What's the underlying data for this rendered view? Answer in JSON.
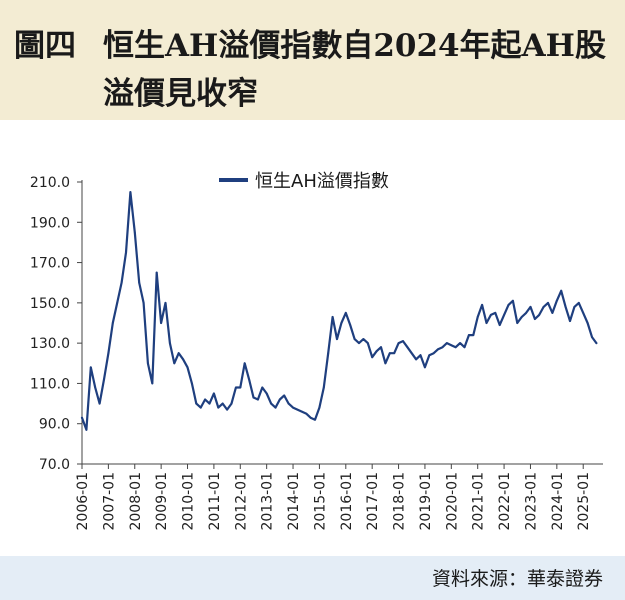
{
  "header": {
    "figure_label": "圖四",
    "title_line1": "恒生AH溢價指數自2024年起AH股",
    "title_line2": "溢價見收窄"
  },
  "footer": {
    "source": "資料來源：華泰證券"
  },
  "colors": {
    "header_bg": "#f3ecd3",
    "footer_bg": "#e4edf6",
    "series": "#1f3f7f"
  },
  "chart_data": {
    "type": "line",
    "title": "恒生AH溢價指數自2024年起AH股溢價見收窄",
    "xlabel": "",
    "ylabel": "",
    "ylim": [
      70,
      210
    ],
    "yticks": [
      "70.0",
      "90.0",
      "110.0",
      "130.0",
      "150.0",
      "170.0",
      "190.0",
      "210.0"
    ],
    "xticks": [
      "2006-01",
      "2007-01",
      "2008-01",
      "2009-01",
      "2010-01",
      "2011-01",
      "2012-01",
      "2013-01",
      "2014-01",
      "2015-01",
      "2016-01",
      "2017-01",
      "2018-01",
      "2019-01",
      "2020-01",
      "2021-01",
      "2022-01",
      "2023-01",
      "2024-01",
      "2025-01"
    ],
    "grid": false,
    "legend": "top-center",
    "series": [
      {
        "name": "恒生AH溢價指數",
        "x": [
          "2006-01",
          "2006-03",
          "2006-05",
          "2006-07",
          "2006-09",
          "2006-11",
          "2007-01",
          "2007-03",
          "2007-05",
          "2007-07",
          "2007-09",
          "2007-11",
          "2008-01",
          "2008-03",
          "2008-05",
          "2008-07",
          "2008-09",
          "2008-11",
          "2009-01",
          "2009-03",
          "2009-05",
          "2009-07",
          "2009-09",
          "2009-11",
          "2010-01",
          "2010-03",
          "2010-05",
          "2010-07",
          "2010-09",
          "2010-11",
          "2011-01",
          "2011-03",
          "2011-05",
          "2011-07",
          "2011-09",
          "2011-11",
          "2012-01",
          "2012-03",
          "2012-05",
          "2012-07",
          "2012-09",
          "2012-11",
          "2013-01",
          "2013-03",
          "2013-05",
          "2013-07",
          "2013-09",
          "2013-11",
          "2014-01",
          "2014-03",
          "2014-05",
          "2014-07",
          "2014-09",
          "2014-11",
          "2015-01",
          "2015-03",
          "2015-05",
          "2015-07",
          "2015-09",
          "2015-11",
          "2016-01",
          "2016-03",
          "2016-05",
          "2016-07",
          "2016-09",
          "2016-11",
          "2017-01",
          "2017-03",
          "2017-05",
          "2017-07",
          "2017-09",
          "2017-11",
          "2018-01",
          "2018-03",
          "2018-05",
          "2018-07",
          "2018-09",
          "2018-11",
          "2019-01",
          "2019-03",
          "2019-05",
          "2019-07",
          "2019-09",
          "2019-11",
          "2020-01",
          "2020-03",
          "2020-05",
          "2020-07",
          "2020-09",
          "2020-11",
          "2021-01",
          "2021-03",
          "2021-05",
          "2021-07",
          "2021-09",
          "2021-11",
          "2022-01",
          "2022-03",
          "2022-05",
          "2022-07",
          "2022-09",
          "2022-11",
          "2023-01",
          "2023-03",
          "2023-05",
          "2023-07",
          "2023-09",
          "2023-11",
          "2024-01",
          "2024-03",
          "2024-05",
          "2024-07",
          "2024-09",
          "2024-11",
          "2025-01",
          "2025-03",
          "2025-05",
          "2025-07"
        ],
        "values": [
          93,
          87,
          118,
          108,
          100,
          112,
          125,
          140,
          150,
          160,
          175,
          205,
          185,
          160,
          150,
          120,
          110,
          165,
          140,
          150,
          130,
          120,
          125,
          122,
          118,
          110,
          100,
          98,
          102,
          100,
          105,
          98,
          100,
          97,
          100,
          108,
          108,
          120,
          112,
          103,
          102,
          108,
          105,
          100,
          98,
          102,
          104,
          100,
          98,
          97,
          96,
          95,
          93,
          92,
          98,
          108,
          125,
          143,
          132,
          140,
          145,
          139,
          132,
          130,
          132,
          130,
          123,
          126,
          128,
          120,
          125,
          125,
          130,
          131,
          128,
          125,
          122,
          124,
          118,
          124,
          125,
          127,
          128,
          130,
          129,
          128,
          130,
          128,
          134,
          134,
          143,
          149,
          140,
          144,
          145,
          139,
          144,
          149,
          151,
          140,
          143,
          145,
          148,
          142,
          144,
          148,
          150,
          145,
          151,
          156,
          148,
          141,
          148,
          150,
          145,
          140,
          133,
          130
        ]
      }
    ]
  }
}
